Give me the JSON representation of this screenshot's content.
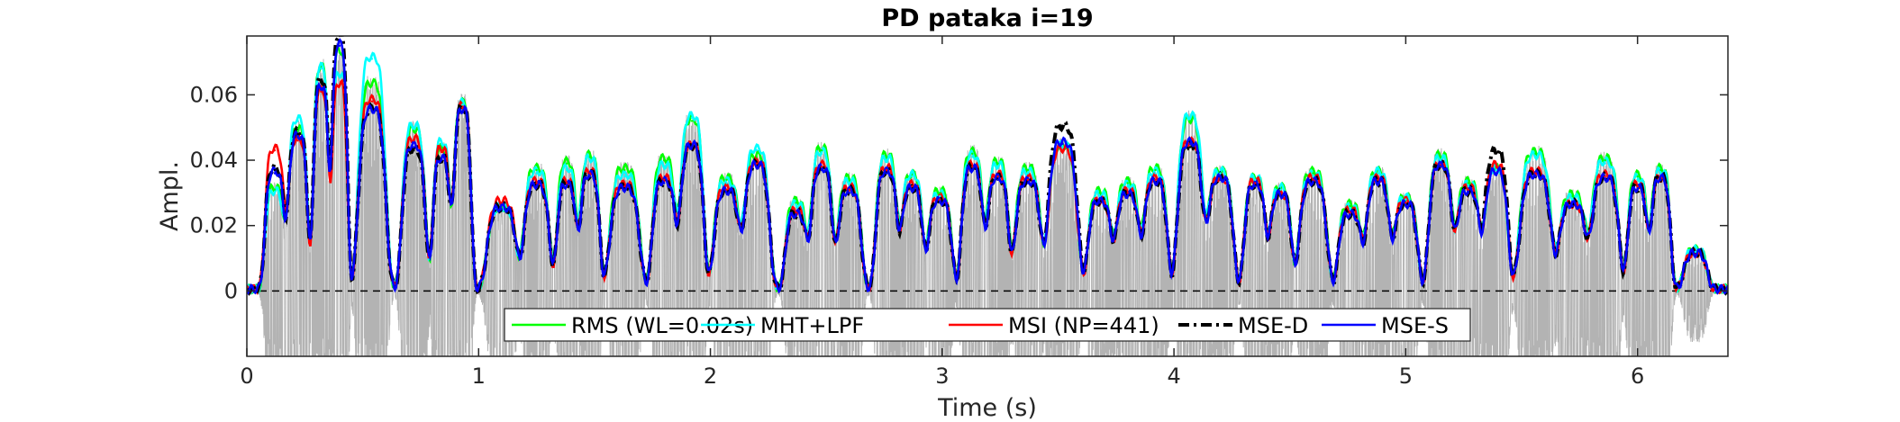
{
  "chart_data": {
    "type": "line",
    "title": "PD pataka i=19",
    "xlabel": "Time (s)",
    "ylabel": "Ampl.",
    "xlim": [
      0,
      6.39
    ],
    "ylim": [
      -0.02,
      0.078
    ],
    "xticks": [
      0,
      1,
      2,
      3,
      4,
      5,
      6
    ],
    "xtick_labels": [
      "0",
      "1",
      "2",
      "3",
      "4",
      "5",
      "6"
    ],
    "yticks": [
      0,
      0.02,
      0.04,
      0.06
    ],
    "ytick_labels": [
      "0",
      "0.02",
      "0.04",
      "0.06"
    ],
    "zero_line": {
      "y": 0,
      "style": "dashed",
      "color": "#000000"
    },
    "legend_position": "bottom-center",
    "background_signal": {
      "name": "speech waveform",
      "color": "#b3b3b3",
      "peak_envelope": 0.06,
      "trough_envelope": -0.02
    },
    "syllable_peaks": {
      "t": [
        0.12,
        0.22,
        0.32,
        0.4,
        0.54,
        0.72,
        0.84,
        0.93,
        1.1,
        1.25,
        1.38,
        1.48,
        1.63,
        1.8,
        1.92,
        2.07,
        2.2,
        2.37,
        2.48,
        2.6,
        2.76,
        2.87,
        2.99,
        3.13,
        3.24,
        3.37,
        3.52,
        3.68,
        3.8,
        3.92,
        4.07,
        4.2,
        4.35,
        4.46,
        4.6,
        4.76,
        4.88,
        5.0,
        5.15,
        5.27,
        5.39,
        5.56,
        5.72,
        5.86,
        6.0,
        6.1,
        6.25
      ],
      "rms": [
        0.031,
        0.049,
        0.068,
        0.073,
        0.063,
        0.049,
        0.043,
        0.057,
        0.025,
        0.037,
        0.039,
        0.041,
        0.037,
        0.04,
        0.052,
        0.034,
        0.041,
        0.027,
        0.043,
        0.034,
        0.041,
        0.035,
        0.03,
        0.042,
        0.039,
        0.037,
        0.044,
        0.03,
        0.033,
        0.037,
        0.052,
        0.036,
        0.034,
        0.031,
        0.036,
        0.026,
        0.036,
        0.028,
        0.041,
        0.033,
        0.037,
        0.042,
        0.029,
        0.04,
        0.035,
        0.037,
        0.012
      ],
      "mht_lpf": [
        0.03,
        0.052,
        0.068,
        0.066,
        0.071,
        0.05,
        0.045,
        0.057,
        0.025,
        0.036,
        0.037,
        0.04,
        0.035,
        0.038,
        0.053,
        0.033,
        0.043,
        0.026,
        0.042,
        0.033,
        0.04,
        0.035,
        0.029,
        0.041,
        0.038,
        0.036,
        0.044,
        0.029,
        0.032,
        0.036,
        0.053,
        0.036,
        0.034,
        0.031,
        0.035,
        0.025,
        0.036,
        0.028,
        0.04,
        0.032,
        0.037,
        0.041,
        0.028,
        0.039,
        0.034,
        0.036,
        0.012
      ],
      "msi": [
        0.043,
        0.046,
        0.061,
        0.063,
        0.058,
        0.046,
        0.043,
        0.056,
        0.027,
        0.033,
        0.033,
        0.036,
        0.032,
        0.034,
        0.044,
        0.031,
        0.039,
        0.024,
        0.038,
        0.031,
        0.037,
        0.032,
        0.028,
        0.038,
        0.035,
        0.034,
        0.043,
        0.027,
        0.03,
        0.034,
        0.045,
        0.034,
        0.033,
        0.029,
        0.034,
        0.024,
        0.034,
        0.027,
        0.038,
        0.031,
        0.038,
        0.036,
        0.026,
        0.035,
        0.032,
        0.034,
        0.011
      ],
      "mse_d": [
        0.037,
        0.048,
        0.064,
        0.078,
        0.055,
        0.043,
        0.04,
        0.055,
        0.025,
        0.032,
        0.032,
        0.035,
        0.031,
        0.033,
        0.044,
        0.03,
        0.038,
        0.023,
        0.037,
        0.03,
        0.036,
        0.031,
        0.027,
        0.037,
        0.034,
        0.033,
        0.05,
        0.027,
        0.029,
        0.033,
        0.044,
        0.034,
        0.032,
        0.029,
        0.033,
        0.023,
        0.033,
        0.026,
        0.038,
        0.03,
        0.042,
        0.035,
        0.026,
        0.034,
        0.031,
        0.034,
        0.011
      ],
      "mse_s": [
        0.036,
        0.047,
        0.062,
        0.075,
        0.055,
        0.044,
        0.04,
        0.055,
        0.025,
        0.032,
        0.032,
        0.035,
        0.031,
        0.033,
        0.044,
        0.03,
        0.038,
        0.023,
        0.037,
        0.03,
        0.036,
        0.031,
        0.027,
        0.037,
        0.034,
        0.033,
        0.045,
        0.027,
        0.029,
        0.033,
        0.045,
        0.034,
        0.032,
        0.029,
        0.033,
        0.023,
        0.033,
        0.026,
        0.038,
        0.03,
        0.036,
        0.035,
        0.026,
        0.034,
        0.031,
        0.034,
        0.011
      ]
    },
    "series": [
      {
        "name": "RMS (WL=0.02s)",
        "key": "rms",
        "color": "#00ff00",
        "style": "solid"
      },
      {
        "name": "MHT+LPF",
        "key": "mht_lpf",
        "color": "#00ffff",
        "style": "solid"
      },
      {
        "name": "MSI (NP=441)",
        "key": "msi",
        "color": "#ff0000",
        "style": "solid"
      },
      {
        "name": "MSE-D",
        "key": "mse_d",
        "color": "#000000",
        "style": "dashdot"
      },
      {
        "name": "MSE-S",
        "key": "mse_s",
        "color": "#0000ff",
        "style": "solid"
      }
    ]
  }
}
